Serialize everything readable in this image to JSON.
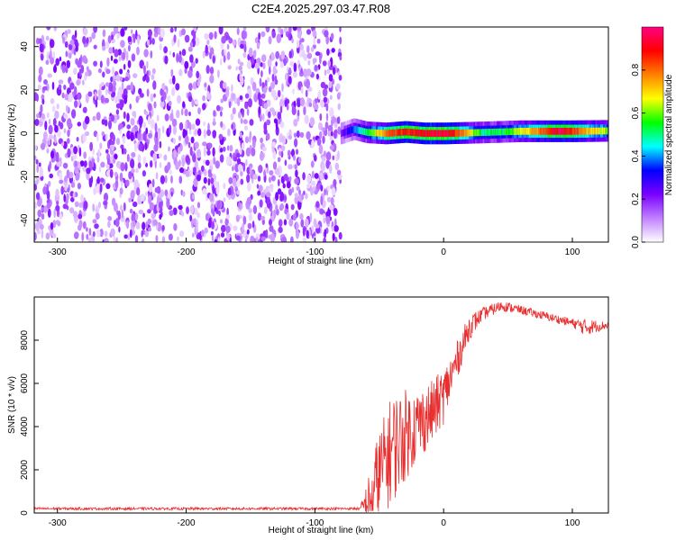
{
  "figure": {
    "title": "C2E4.2025.297.03.47.R08"
  },
  "chart_data": [
    {
      "type": "heatmap",
      "id": "spectrogram",
      "xlabel": "Height of straight line (km)",
      "ylabel": "Frequency (Hz)",
      "xlim": [
        -318,
        128
      ],
      "ylim": [
        -50,
        49
      ],
      "xticks": [
        -300,
        -200,
        -100,
        0,
        100
      ],
      "yticks": [
        -40,
        -20,
        0,
        20,
        40
      ],
      "noise_region": {
        "x_end": -80,
        "description_values": "random purple noise, amplitude 0.0-0.2"
      },
      "ridge": {
        "freq": [
          {
            "x": -80,
            "y": 0
          },
          {
            "x": -70,
            "y": 2
          },
          {
            "x": -60,
            "y": 0.5
          },
          {
            "x": -45,
            "y": 0
          },
          {
            "x": -30,
            "y": 0.7
          },
          {
            "x": -15,
            "y": 0
          },
          {
            "x": 0,
            "y": 0
          },
          {
            "x": 20,
            "y": 0.3
          },
          {
            "x": 60,
            "y": 1
          },
          {
            "x": 100,
            "y": 1
          },
          {
            "x": 128,
            "y": 1.2
          }
        ],
        "amplitude": [
          {
            "x": -80,
            "y": 0.2
          },
          {
            "x": -60,
            "y": 0.55
          },
          {
            "x": -40,
            "y": 0.85
          },
          {
            "x": -20,
            "y": 0.9
          },
          {
            "x": 0,
            "y": 0.95
          },
          {
            "x": 10,
            "y": 0.85
          },
          {
            "x": 30,
            "y": 0.5
          },
          {
            "x": 50,
            "y": 0.55
          },
          {
            "x": 70,
            "y": 0.75
          },
          {
            "x": 90,
            "y": 0.95
          },
          {
            "x": 110,
            "y": 0.75
          },
          {
            "x": 128,
            "y": 0.6
          }
        ]
      },
      "colorbar": {
        "label": "Normalized spectral amplitude",
        "range": [
          0,
          1
        ],
        "ticks": [
          "0.0",
          "0.2",
          "0.4",
          "0.6",
          "0.8"
        ],
        "colors": [
          "#ffffff",
          "#c080ff",
          "#7a00ff",
          "#0000ff",
          "#00ffff",
          "#00ff00",
          "#ffff00",
          "#ff8000",
          "#ff0000",
          "#ff0080"
        ]
      }
    },
    {
      "type": "line",
      "id": "snr",
      "xlabel": "Height of straight line (km)",
      "ylabel": "SNR (10 * v/v)",
      "xlim": [
        -318,
        128
      ],
      "ylim": [
        0,
        10000
      ],
      "xticks": [
        -300,
        -200,
        -100,
        0,
        100
      ],
      "yticks": [
        0,
        2000,
        4000,
        6000,
        8000
      ],
      "color": "#e83030",
      "series": [
        {
          "name": "SNR",
          "points": [
            {
              "x": -318,
              "y": 200
            },
            {
              "x": -200,
              "y": 200
            },
            {
              "x": -100,
              "y": 200
            },
            {
              "x": -65,
              "y": 200
            },
            {
              "x": -58,
              "y": 500
            },
            {
              "x": -50,
              "y": 1800
            },
            {
              "x": -40,
              "y": 3000
            },
            {
              "x": -30,
              "y": 3600
            },
            {
              "x": -20,
              "y": 4100
            },
            {
              "x": -10,
              "y": 4600
            },
            {
              "x": 0,
              "y": 5400
            },
            {
              "x": 10,
              "y": 7000
            },
            {
              "x": 20,
              "y": 8600
            },
            {
              "x": 30,
              "y": 9200
            },
            {
              "x": 45,
              "y": 9600
            },
            {
              "x": 60,
              "y": 9400
            },
            {
              "x": 80,
              "y": 9100
            },
            {
              "x": 100,
              "y": 8800
            },
            {
              "x": 110,
              "y": 8600
            },
            {
              "x": 128,
              "y": 8700
            }
          ],
          "noise_amplitude": [
            {
              "x": -318,
              "y": 60
            },
            {
              "x": -65,
              "y": 60
            },
            {
              "x": -55,
              "y": 1800
            },
            {
              "x": -40,
              "y": 2600
            },
            {
              "x": -20,
              "y": 1700
            },
            {
              "x": 0,
              "y": 1300
            },
            {
              "x": 10,
              "y": 900
            },
            {
              "x": 30,
              "y": 300
            },
            {
              "x": 60,
              "y": 200
            },
            {
              "x": 100,
              "y": 200
            },
            {
              "x": 110,
              "y": 400
            },
            {
              "x": 128,
              "y": 150
            }
          ]
        }
      ]
    }
  ]
}
